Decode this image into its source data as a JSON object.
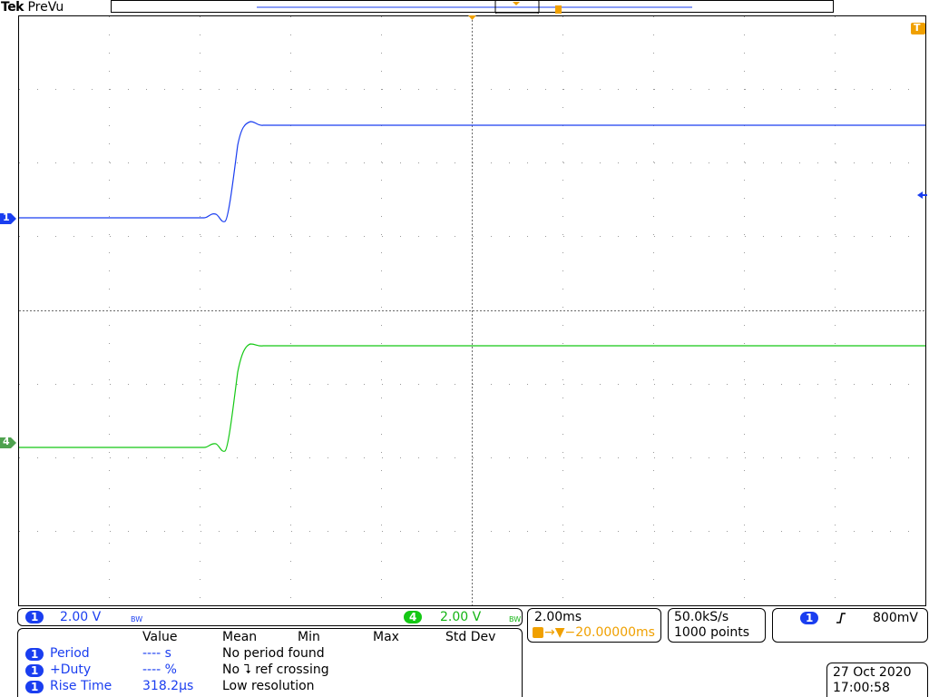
{
  "header": {
    "brand": "Tek",
    "mode": "PreVu"
  },
  "channels": {
    "ch1": {
      "badge": "1",
      "scale": "2.00 V",
      "bw": "BW",
      "color": "#1a3ef0"
    },
    "ch4": {
      "badge": "4",
      "scale": "2.00 V",
      "bw": "BW",
      "color": "#14c814"
    }
  },
  "horizontal": {
    "time_div": "2.00ms",
    "trigger_position": "→▼−20.00000mѕ"
  },
  "acquisition": {
    "sample_rate": "50.0kS/s",
    "record_length": "1000 points"
  },
  "trigger": {
    "source": "1",
    "slope_icon": "rising-edge-icon",
    "level": "800mV",
    "marker": "T"
  },
  "measurements": {
    "columns": [
      "Value",
      "Mean",
      "Min",
      "Max",
      "Std Dev"
    ],
    "rows": [
      {
        "channel": "1",
        "name": "Period",
        "value": "---- s",
        "note": "No period found"
      },
      {
        "channel": "1",
        "name": "+Duty",
        "value": "---- %",
        "note": "No ⮧ ref crossing"
      },
      {
        "channel": "1",
        "name": "Rise Time",
        "value": "318.2µs",
        "note": "Low resolution"
      }
    ]
  },
  "datetime": {
    "date": "27 Oct  2020",
    "time": "17:00:58"
  },
  "markers": {
    "ch1": "1",
    "ch4": "4",
    "trigger": "T"
  }
}
